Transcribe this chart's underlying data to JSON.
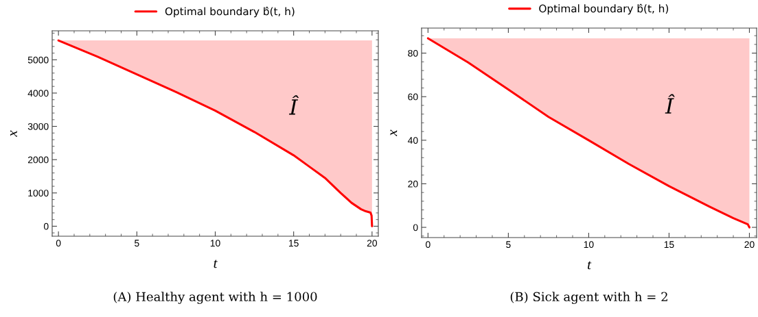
{
  "chart_data": [
    {
      "type": "line",
      "xlabel": "t",
      "ylabel": "x",
      "legend": "top",
      "grid": false,
      "xlim": [
        -0.4,
        20.4
      ],
      "ylim": [
        -300,
        5870
      ],
      "xticks": [
        0,
        5,
        10,
        15,
        20
      ],
      "yticks": [
        0,
        1000,
        2000,
        3000,
        4000,
        5000
      ],
      "series": [
        {
          "name": "Optimal boundary b̂(t, h)",
          "color": "#ff0000",
          "x": [
            0,
            2.5,
            5,
            7.5,
            10,
            12.5,
            15,
            16,
            17,
            18,
            18.7,
            19.3,
            19.6,
            19.9,
            19.97,
            20
          ],
          "values": [
            5580,
            5090,
            4560,
            4030,
            3470,
            2830,
            2130,
            1790,
            1450,
            1000,
            700,
            510,
            450,
            410,
            320,
            0
          ],
          "lower": [
            5580,
            5090,
            4560,
            4030,
            3470,
            2830,
            2130,
            1790,
            1450,
            1000,
            700,
            510,
            450,
            410,
            320,
            0
          ],
          "upper": [
            5580,
            5580,
            5580,
            5580,
            5580,
            5580,
            5580,
            5580,
            5580,
            5580,
            5580,
            5580,
            5580,
            5580,
            5580,
            5580
          ]
        }
      ],
      "annotations": [
        "Î",
        "(A) Healthy agent with h = 1000"
      ]
    },
    {
      "type": "line",
      "xlabel": "t",
      "ylabel": "x",
      "legend": "top",
      "grid": false,
      "xlim": [
        -0.4,
        20.45
      ],
      "ylim": [
        -4.7,
        91.5
      ],
      "xticks": [
        0,
        5,
        10,
        15,
        20
      ],
      "yticks": [
        0,
        20,
        40,
        60,
        80
      ],
      "series": [
        {
          "name": "Optimal boundary b̂(t, h)",
          "color": "#ff0000",
          "x": [
            0,
            2.5,
            5,
            7.5,
            10,
            12.5,
            15,
            17.5,
            19,
            19.9,
            20
          ],
          "values": [
            86.8,
            75.7,
            63.3,
            50.7,
            40,
            29.1,
            18.9,
            9.6,
            4.2,
            1.4,
            0
          ],
          "lower": [
            86.8,
            75.7,
            63.3,
            50.7,
            40,
            29.1,
            18.9,
            9.6,
            4.2,
            1.4,
            0
          ],
          "upper": [
            86.8,
            86.8,
            86.8,
            86.8,
            86.8,
            86.8,
            86.8,
            86.8,
            86.8,
            86.8,
            86.8
          ]
        }
      ],
      "annotations": [
        "Î",
        "(B) Sick agent with h = 2"
      ]
    }
  ]
}
